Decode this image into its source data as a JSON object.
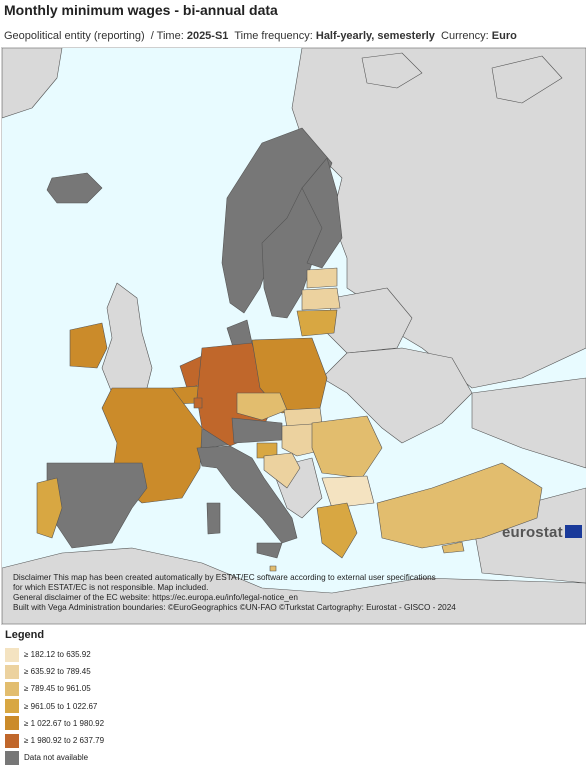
{
  "title": "Monthly minimum wages - bi-annual data",
  "filters": {
    "geo_label": "Geopolitical entity (reporting)",
    "time_label": "/ Time:",
    "time_value": "2025-S1",
    "freq_label": "Time frequency:",
    "freq_value": "Half-yearly, semesterly",
    "currency_label": "Currency:",
    "currency_value": "Euro"
  },
  "disclaimer": [
    "Disclaimer This map has been created automatically by ESTAT/EC software according to external user specifications",
    "for which ESTAT/EC is not responsible. Map included.",
    "General disclaimer of the EC website: https://ec.europa.eu/info/legal-notice_en",
    "Built with Vega Administration boundaries: ©EuroGeographics ©UN-FAO ©Turkstat Cartography: Eurostat - GISCO - 2024"
  ],
  "brand": "eurostat",
  "legend": {
    "title": "Legend",
    "items": [
      {
        "label": "≥ 182.12 to 635.92",
        "color": "#f4e3c1"
      },
      {
        "label": "≥ 635.92 to 789.45",
        "color": "#ecd29f"
      },
      {
        "label": "≥ 789.45 to 961.05",
        "color": "#e2bd6e"
      },
      {
        "label": "≥ 961.05 to 1 022.67",
        "color": "#d8a742"
      },
      {
        "label": "≥ 1 022.67 to 1 980.92",
        "color": "#cb8b2a"
      },
      {
        "label": "≥ 1 980.92 to 2 637.79",
        "color": "#c0672b"
      },
      {
        "label": "Data not available",
        "color": "#777777"
      }
    ]
  },
  "colors": {
    "sea": "#e8fbff",
    "non_eu_land": "#d9d9d9",
    "border": "#333333"
  }
}
